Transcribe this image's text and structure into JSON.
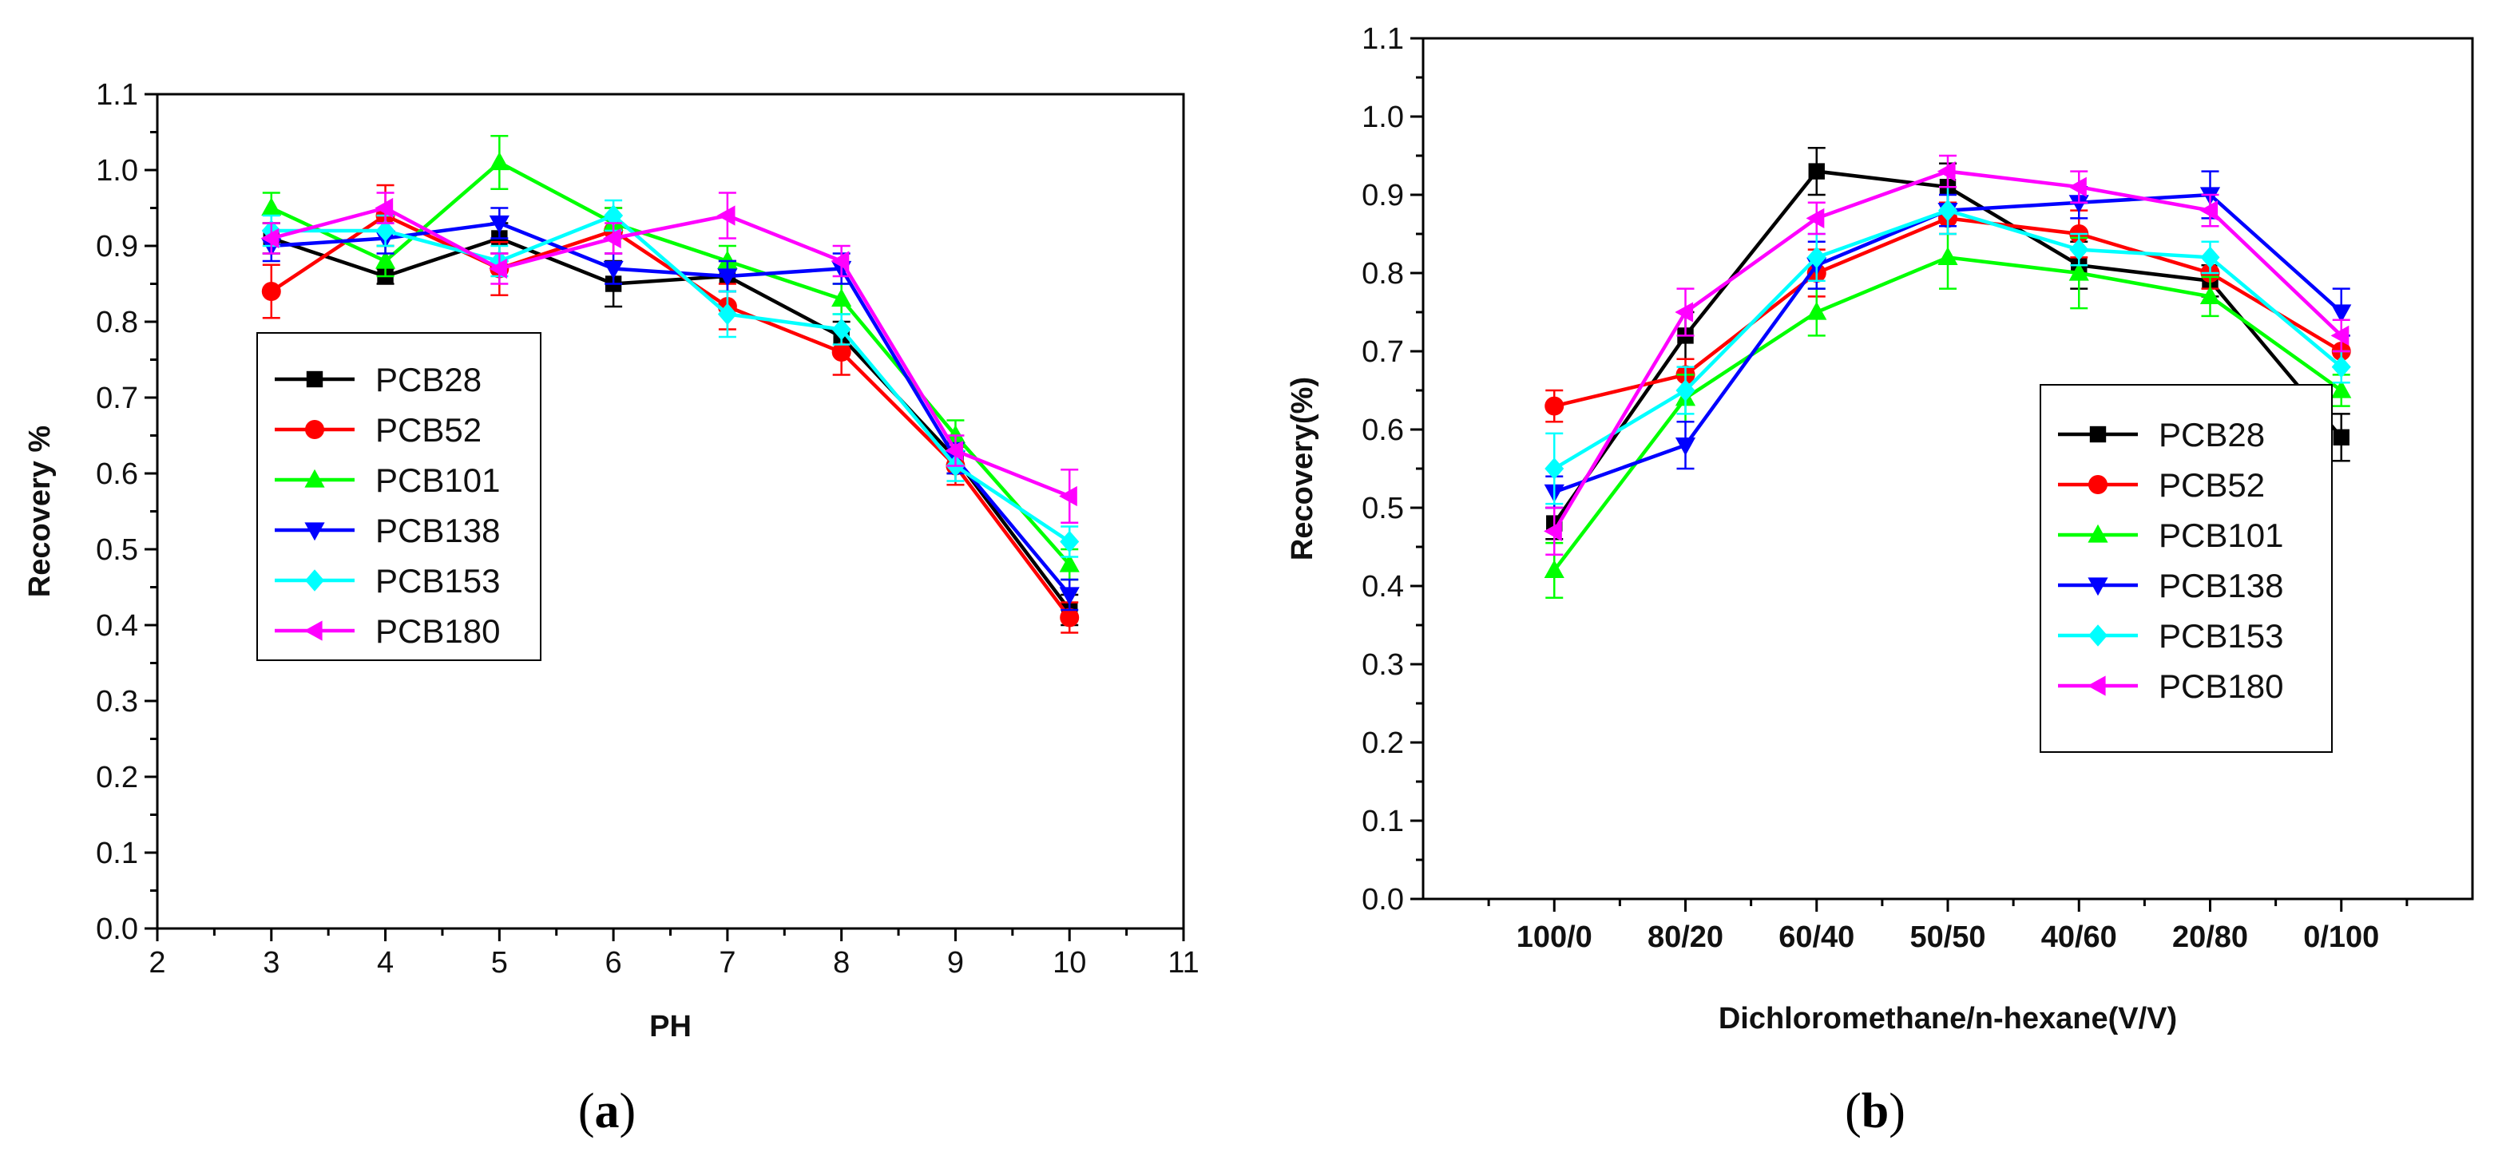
{
  "chart_data": [
    {
      "type": "line",
      "panel_label": "a",
      "title": "",
      "xlabel": "PH",
      "ylabel": "Recovery %",
      "xlim": [
        2,
        11
      ],
      "ylim": [
        0.0,
        1.1
      ],
      "xticks": [
        "2",
        "3",
        "4",
        "5",
        "6",
        "7",
        "8",
        "9",
        "10",
        "11"
      ],
      "yticks": [
        "0.0",
        "0.1",
        "0.2",
        "0.3",
        "0.4",
        "0.5",
        "0.6",
        "0.7",
        "0.8",
        "0.9",
        "1.0",
        "1.1"
      ],
      "x": [
        3,
        4,
        5,
        6,
        7,
        8,
        9,
        10
      ],
      "legend_position": "center-left",
      "grid": false,
      "series": [
        {
          "name": "PCB28",
          "color": "#000000",
          "marker": "square",
          "values": [
            0.91,
            0.86,
            0.91,
            0.85,
            0.86,
            0.78,
            0.62,
            0.42
          ],
          "errors": [
            0.02,
            0.01,
            0.02,
            0.03,
            0.02,
            0.02,
            0.02,
            0.02
          ]
        },
        {
          "name": "PCB52",
          "color": "#ff0000",
          "marker": "circle",
          "values": [
            0.84,
            0.94,
            0.87,
            0.92,
            0.82,
            0.76,
            0.61,
            0.41
          ],
          "errors": [
            0.035,
            0.04,
            0.035,
            0.03,
            0.03,
            0.03,
            0.025,
            0.02
          ]
        },
        {
          "name": "PCB101",
          "color": "#00ff00",
          "marker": "triangle-up",
          "values": [
            0.95,
            0.88,
            1.01,
            0.93,
            0.88,
            0.83,
            0.65,
            0.48
          ],
          "errors": [
            0.02,
            0.02,
            0.035,
            0.02,
            0.02,
            0.02,
            0.02,
            0.02
          ]
        },
        {
          "name": "PCB138",
          "color": "#0000ff",
          "marker": "triangle-down",
          "values": [
            0.9,
            0.91,
            0.93,
            0.87,
            0.86,
            0.87,
            0.62,
            0.44
          ],
          "errors": [
            0.02,
            0.02,
            0.02,
            0.02,
            0.02,
            0.02,
            0.02,
            0.02
          ]
        },
        {
          "name": "PCB153",
          "color": "#00ffff",
          "marker": "diamond",
          "values": [
            0.92,
            0.92,
            0.88,
            0.94,
            0.81,
            0.79,
            0.61,
            0.51
          ],
          "errors": [
            0.02,
            0.02,
            0.02,
            0.02,
            0.03,
            0.02,
            0.02,
            0.02
          ]
        },
        {
          "name": "PCB180",
          "color": "#ff00ff",
          "marker": "triangle-left",
          "values": [
            0.91,
            0.95,
            0.87,
            0.91,
            0.94,
            0.88,
            0.63,
            0.57
          ],
          "errors": [
            0.02,
            0.02,
            0.02,
            0.02,
            0.03,
            0.02,
            0.02,
            0.035
          ]
        }
      ]
    },
    {
      "type": "line",
      "panel_label": "b",
      "title": "",
      "xlabel": "Dichloromethane/n-hexane(V/V)",
      "ylabel": "Recovery(%)",
      "ylim": [
        0.0,
        1.1
      ],
      "categories": [
        "100/0",
        "80/20",
        "60/40",
        "50/50",
        "40/60",
        "20/80",
        "0/100"
      ],
      "yticks": [
        "0.0",
        "0.1",
        "0.2",
        "0.3",
        "0.4",
        "0.5",
        "0.6",
        "0.7",
        "0.8",
        "0.9",
        "1.0",
        "1.1"
      ],
      "legend_position": "center-right",
      "grid": false,
      "series": [
        {
          "name": "PCB28",
          "color": "#000000",
          "marker": "square",
          "values": [
            0.48,
            0.72,
            0.93,
            0.91,
            0.81,
            0.79,
            0.59
          ],
          "errors": [
            0.02,
            0.03,
            0.03,
            0.03,
            0.03,
            0.02,
            0.03
          ]
        },
        {
          "name": "PCB52",
          "color": "#ff0000",
          "marker": "circle",
          "values": [
            0.63,
            0.67,
            0.8,
            0.87,
            0.85,
            0.8,
            0.7
          ],
          "errors": [
            0.02,
            0.02,
            0.03,
            0.02,
            0.03,
            0.02,
            0.02
          ]
        },
        {
          "name": "PCB101",
          "color": "#00ff00",
          "marker": "triangle-up",
          "values": [
            0.42,
            0.64,
            0.75,
            0.82,
            0.8,
            0.77,
            0.65
          ],
          "errors": [
            0.035,
            0.03,
            0.03,
            0.04,
            0.045,
            0.025,
            0.02
          ]
        },
        {
          "name": "PCB138",
          "color": "#0000ff",
          "marker": "triangle-down",
          "values": [
            0.52,
            0.58,
            0.81,
            0.88,
            0.89,
            0.9,
            0.75
          ],
          "errors": [
            0.02,
            0.03,
            0.03,
            0.02,
            0.02,
            0.03,
            0.03
          ]
        },
        {
          "name": "PCB153",
          "color": "#00ffff",
          "marker": "diamond",
          "values": [
            0.55,
            0.65,
            0.82,
            0.88,
            0.83,
            0.82,
            0.68
          ],
          "errors": [
            0.045,
            0.03,
            0.03,
            0.03,
            0.02,
            0.02,
            0.02
          ]
        },
        {
          "name": "PCB180",
          "color": "#ff00ff",
          "marker": "triangle-left",
          "values": [
            0.47,
            0.75,
            0.87,
            0.93,
            0.91,
            0.88,
            0.72
          ],
          "errors": [
            0.03,
            0.03,
            0.02,
            0.02,
            0.02,
            0.02,
            0.02
          ]
        }
      ]
    }
  ]
}
